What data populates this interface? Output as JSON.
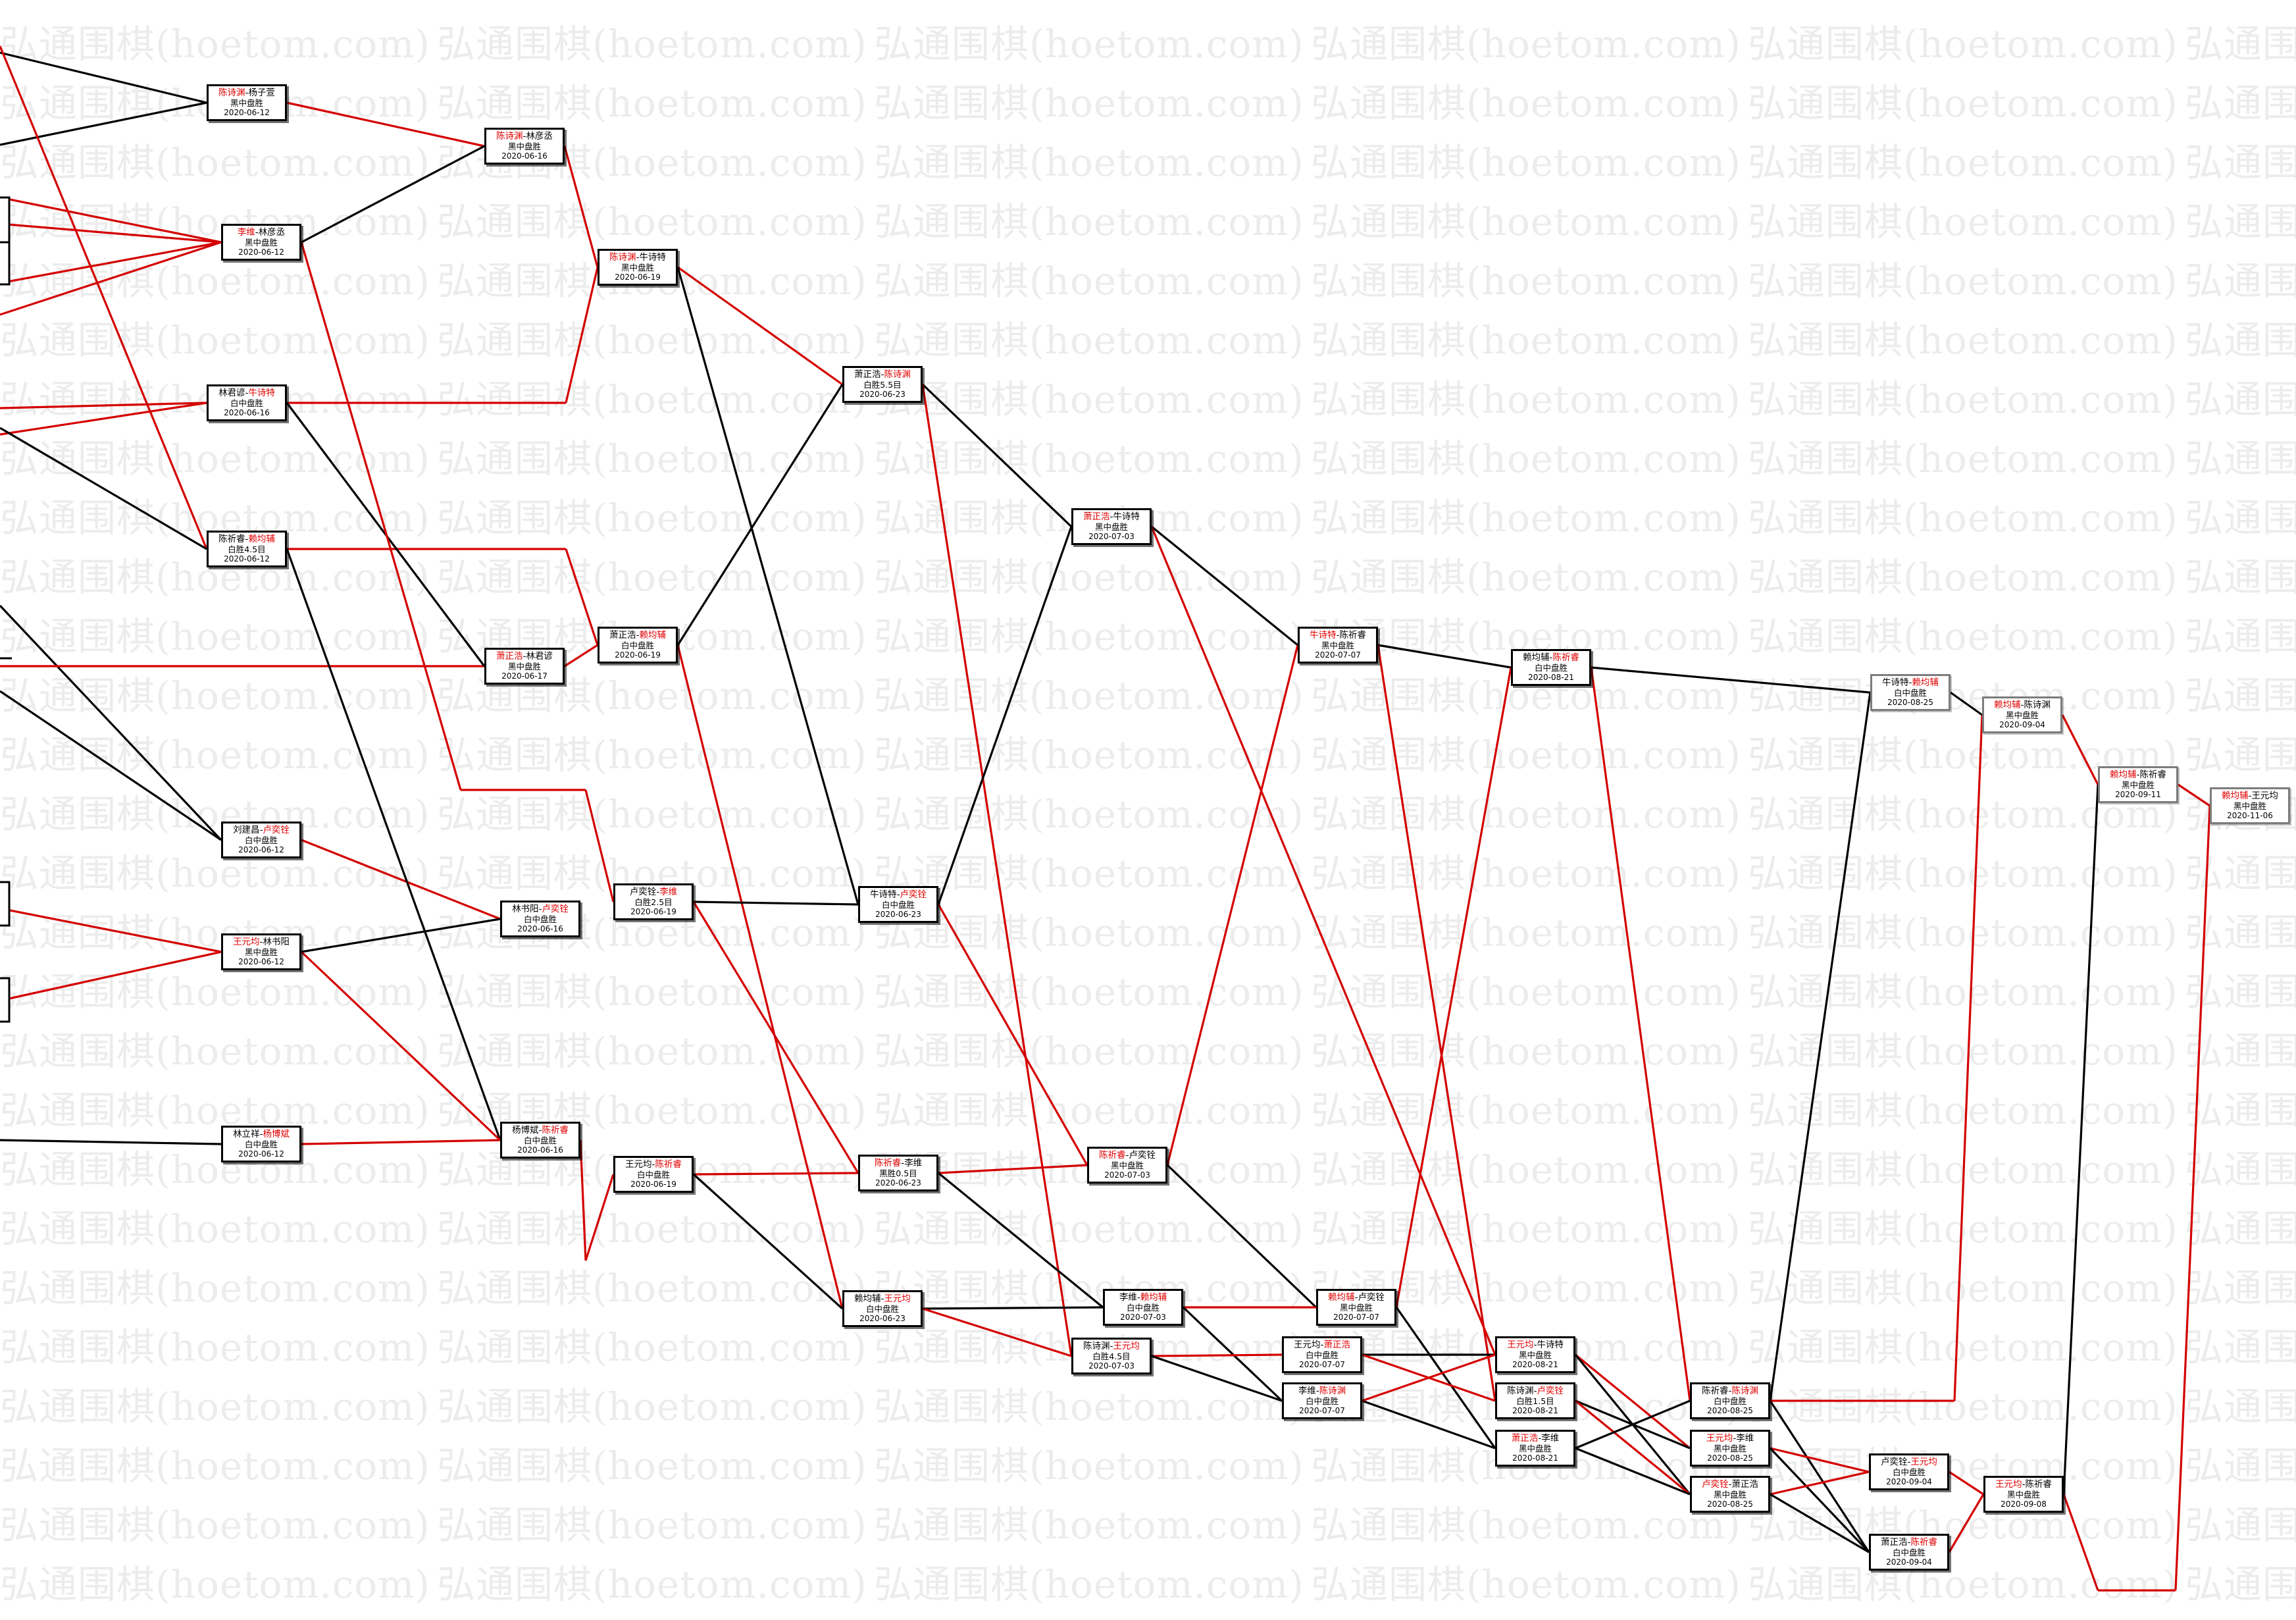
{
  "watermark": "弘通围棋(hoetom.com)",
  "colors": {
    "win_link": "#d40000",
    "loss_link": "#000000",
    "winner_name": "#e00000",
    "box_border": "#000000"
  },
  "nodes": [
    {
      "id": "A1",
      "winner": 0,
      "p1": "陈诗渊",
      "p2": "杨子萱",
      "result": "黑中盘胜",
      "date": "2020-06-12"
    },
    {
      "id": "A2",
      "winner": 0,
      "p1": "李维",
      "p2": "林彦丞",
      "result": "黑中盘胜",
      "date": "2020-06-12"
    },
    {
      "id": "A3",
      "winner": 1,
      "p1": "林君谚",
      "p2": "牛诗特",
      "result": "白中盘胜",
      "date": "2020-06-16"
    },
    {
      "id": "A4",
      "winner": 1,
      "p1": "陈祈睿",
      "p2": "赖均辅",
      "result": "白胜4.5目",
      "date": "2020-06-12"
    },
    {
      "id": "A5",
      "winner": 1,
      "p1": "刘建昌",
      "p2": "卢奕铨",
      "result": "白中盘胜",
      "date": "2020-06-12"
    },
    {
      "id": "A6",
      "winner": 0,
      "p1": "王元均",
      "p2": "林书阳",
      "result": "黑中盘胜",
      "date": "2020-06-12"
    },
    {
      "id": "A7",
      "winner": 1,
      "p1": "林立祥",
      "p2": "杨博斌",
      "result": "白中盘胜",
      "date": "2020-06-12"
    },
    {
      "id": "B1",
      "winner": 0,
      "p1": "陈诗渊",
      "p2": "林彦丞",
      "result": "黑中盘胜",
      "date": "2020-06-16"
    },
    {
      "id": "B2",
      "winner": 0,
      "p1": "萧正浩",
      "p2": "林君谚",
      "result": "黑中盘胜",
      "date": "2020-06-17"
    },
    {
      "id": "B3",
      "winner": 1,
      "p1": "林书阳",
      "p2": "卢奕铨",
      "result": "白中盘胜",
      "date": "2020-06-16"
    },
    {
      "id": "B4",
      "winner": 1,
      "p1": "杨博斌",
      "p2": "陈祈睿",
      "result": "白中盘胜",
      "date": "2020-06-16"
    },
    {
      "id": "C1",
      "winner": 0,
      "p1": "陈诗渊",
      "p2": "牛诗特",
      "result": "黑中盘胜",
      "date": "2020-06-19"
    },
    {
      "id": "C2",
      "winner": 1,
      "p1": "萧正浩",
      "p2": "赖均辅",
      "result": "白中盘胜",
      "date": "2020-06-19"
    },
    {
      "id": "C3",
      "winner": 1,
      "p1": "卢奕铨",
      "p2": "李维",
      "result": "白胜2.5目",
      "date": "2020-06-19"
    },
    {
      "id": "C4",
      "winner": 1,
      "p1": "王元均",
      "p2": "陈祈睿",
      "result": "白中盘胜",
      "date": "2020-06-19"
    },
    {
      "id": "D1",
      "winner": 1,
      "p1": "萧正浩",
      "p2": "陈诗渊",
      "result": "白胜5.5目",
      "date": "2020-06-23"
    },
    {
      "id": "D2",
      "winner": 1,
      "p1": "牛诗特",
      "p2": "卢奕铨",
      "result": "白中盘胜",
      "date": "2020-06-23"
    },
    {
      "id": "D3",
      "winner": 0,
      "p1": "陈祈睿",
      "p2": "李维",
      "result": "黑胜0.5目",
      "date": "2020-06-23"
    },
    {
      "id": "D4",
      "winner": 1,
      "p1": "赖均辅",
      "p2": "王元均",
      "result": "白中盘胜",
      "date": "2020-06-23"
    },
    {
      "id": "E1",
      "winner": 0,
      "p1": "萧正浩",
      "p2": "牛诗特",
      "result": "黑中盘胜",
      "date": "2020-07-03"
    },
    {
      "id": "E2",
      "winner": 0,
      "p1": "陈祈睿",
      "p2": "卢奕铨",
      "result": "黑中盘胜",
      "date": "2020-07-03"
    },
    {
      "id": "E3",
      "winner": 1,
      "p1": "李维",
      "p2": "赖均辅",
      "result": "白中盘胜",
      "date": "2020-07-03"
    },
    {
      "id": "E4",
      "winner": 1,
      "p1": "陈诗渊",
      "p2": "王元均",
      "result": "白胜4.5目",
      "date": "2020-07-03"
    },
    {
      "id": "F1",
      "winner": 0,
      "p1": "牛诗特",
      "p2": "陈祈睿",
      "result": "黑中盘胜",
      "date": "2020-07-07"
    },
    {
      "id": "F2",
      "winner": 0,
      "p1": "赖均辅",
      "p2": "卢奕铨",
      "result": "黑中盘胜",
      "date": "2020-07-07"
    },
    {
      "id": "F3",
      "winner": 1,
      "p1": "王元均",
      "p2": "萧正浩",
      "result": "白中盘胜",
      "date": "2020-07-07"
    },
    {
      "id": "F4",
      "winner": 1,
      "p1": "李维",
      "p2": "陈诗渊",
      "result": "白中盘胜",
      "date": "2020-07-07"
    },
    {
      "id": "G1",
      "winner": 1,
      "p1": "赖均辅",
      "p2": "陈祈睿",
      "result": "白中盘胜",
      "date": "2020-08-21"
    },
    {
      "id": "G2",
      "winner": 0,
      "p1": "王元均",
      "p2": "牛诗特",
      "result": "黑中盘胜",
      "date": "2020-08-21"
    },
    {
      "id": "G3",
      "winner": 1,
      "p1": "陈诗渊",
      "p2": "卢奕铨",
      "result": "白胜1.5目",
      "date": "2020-08-21"
    },
    {
      "id": "G4",
      "winner": 0,
      "p1": "萧正浩",
      "p2": "李维",
      "result": "黑中盘胜",
      "date": "2020-08-21"
    },
    {
      "id": "H1",
      "winner": 1,
      "p1": "牛诗特",
      "p2": "赖均辅",
      "result": "白中盘胜",
      "date": "2020-08-25",
      "faded": true
    },
    {
      "id": "H2",
      "winner": 1,
      "p1": "陈祈睿",
      "p2": "陈诗渊",
      "result": "白中盘胜",
      "date": "2020-08-25"
    },
    {
      "id": "H3",
      "winner": 0,
      "p1": "王元均",
      "p2": "李维",
      "result": "黑中盘胜",
      "date": "2020-08-25"
    },
    {
      "id": "H4",
      "winner": 0,
      "p1": "卢奕铨",
      "p2": "萧正浩",
      "result": "黑中盘胜",
      "date": "2020-08-25"
    },
    {
      "id": "I1",
      "winner": 0,
      "p1": "赖均辅",
      "p2": "陈诗渊",
      "result": "黑中盘胜",
      "date": "2020-09-04",
      "faded": true
    },
    {
      "id": "I2",
      "winner": 1,
      "p1": "卢奕铨",
      "p2": "王元均",
      "result": "白中盘胜",
      "date": "2020-09-04"
    },
    {
      "id": "I3",
      "winner": 1,
      "p1": "萧正浩",
      "p2": "陈祈睿",
      "result": "白中盘胜",
      "date": "2020-09-04"
    },
    {
      "id": "J1",
      "winner": 0,
      "p1": "赖均辅",
      "p2": "陈祈睿",
      "result": "黑中盘胜",
      "date": "2020-09-11",
      "faded": true
    },
    {
      "id": "J2",
      "winner": 0,
      "p1": "王元均",
      "p2": "陈祈睿",
      "result": "黑中盘胜",
      "date": "2020-09-08"
    },
    {
      "id": "K1",
      "winner": 0,
      "p1": "赖均辅",
      "p2": "王元均",
      "result": "黑中盘胜",
      "date": "2020-11-06",
      "faded": true
    }
  ]
}
